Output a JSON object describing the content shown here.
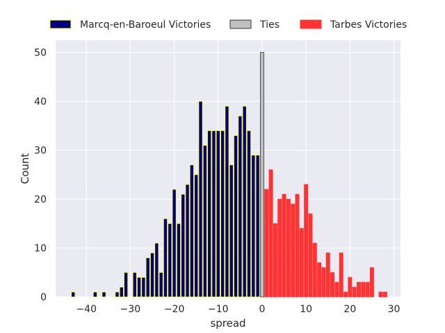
{
  "chart_data": {
    "type": "bar",
    "xlabel": "spread",
    "ylabel": "Count",
    "xlim": [
      -47,
      31.5
    ],
    "ylim": [
      0,
      52.5
    ],
    "xticks": [
      -40,
      -30,
      -20,
      -10,
      0,
      10,
      20,
      30
    ],
    "xtick_labels": [
      "−40",
      "−30",
      "−20",
      "−10",
      "0",
      "10",
      "20",
      "30"
    ],
    "yticks": [
      0,
      10,
      20,
      30,
      40,
      50
    ],
    "ytick_labels": [
      "0",
      "10",
      "20",
      "30",
      "40",
      "50"
    ],
    "grid": true,
    "legend_position": "top",
    "series": [
      {
        "name": "Marcq-en-Baroeul Victories",
        "color": "#000080",
        "edgecolor": "#ffff00",
        "x": [
          -43,
          -38,
          -36,
          -33,
          -32,
          -31,
          -29,
          -28,
          -27,
          -26,
          -25,
          -24,
          -23,
          -22,
          -21,
          -20,
          -19,
          -18,
          -17,
          -16,
          -15,
          -14,
          -13,
          -12,
          -11,
          -10,
          -9,
          -8,
          -7,
          -6,
          -5,
          -4,
          -3,
          -2,
          -1
        ],
        "values": [
          1,
          1,
          1,
          1,
          2,
          5,
          5,
          4,
          4,
          8,
          9,
          11,
          5,
          16,
          15,
          22,
          15,
          21,
          23,
          27,
          25,
          40,
          31,
          34,
          34,
          34,
          34,
          39,
          27,
          33,
          37,
          39,
          34,
          29,
          29
        ]
      },
      {
        "name": "Ties",
        "color": "#c0c0c0",
        "edgecolor": "#333333",
        "x": [
          0
        ],
        "values": [
          50
        ]
      },
      {
        "name": "Tarbes Victories",
        "color": "#ff3333",
        "edgecolor": "#ff3333",
        "x": [
          1,
          2,
          3,
          4,
          5,
          6,
          7,
          8,
          9,
          10,
          11,
          12,
          13,
          14,
          15,
          16,
          17,
          18,
          19,
          20,
          21,
          22,
          23,
          24,
          25,
          27,
          28
        ],
        "values": [
          22,
          26,
          15,
          20,
          21,
          20,
          19,
          21,
          14,
          23,
          17,
          11,
          7,
          6,
          9,
          5,
          3,
          9,
          1,
          4,
          2,
          3,
          3,
          3,
          6,
          1,
          1
        ]
      }
    ]
  }
}
